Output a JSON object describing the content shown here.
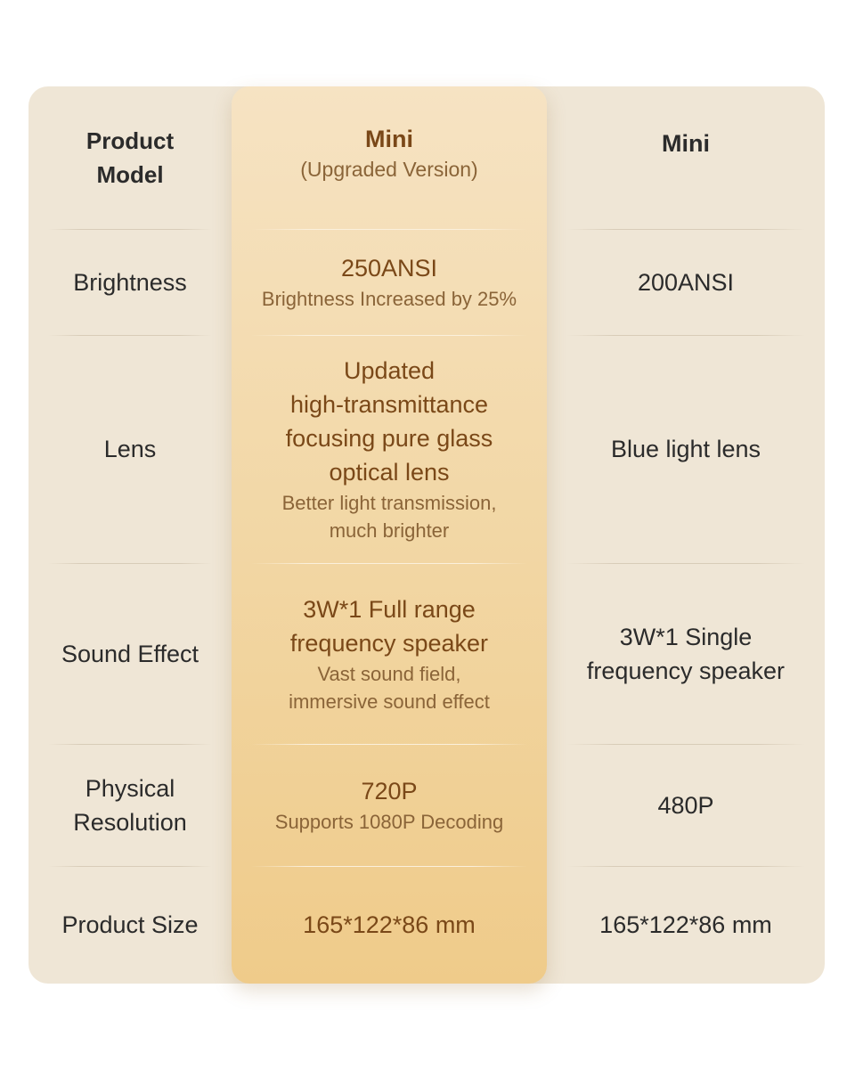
{
  "colors": {
    "card_bg": "#efe6d6",
    "highlight_top": "#f6e3c3",
    "highlight_bottom": "#efcb8a",
    "accent_text": "#7a4818"
  },
  "header": {
    "label": [
      "Product",
      "Model"
    ],
    "upgraded": {
      "title": "Mini",
      "subtitle": "(Upgraded Version)"
    },
    "standard": {
      "title": "Mini"
    }
  },
  "rows": [
    {
      "label": [
        "Brightness"
      ],
      "upgraded": {
        "main": [
          "250ANSI"
        ],
        "note": [
          "Brightness Increased by 25%"
        ]
      },
      "standard": [
        "200ANSI"
      ]
    },
    {
      "label": [
        "Lens"
      ],
      "upgraded": {
        "main": [
          "Updated",
          "high-transmittance",
          "focusing pure glass",
          "optical lens"
        ],
        "note": [
          "Better light transmission,",
          "much brighter"
        ]
      },
      "standard": [
        "Blue light lens"
      ]
    },
    {
      "label": [
        "Sound Effect"
      ],
      "upgraded": {
        "main": [
          "3W*1 Full range",
          "frequency speaker"
        ],
        "note": [
          "Vast sound field,",
          "immersive sound effect"
        ]
      },
      "standard": [
        "3W*1 Single",
        "frequency speaker"
      ]
    },
    {
      "label": [
        "Physical",
        "Resolution"
      ],
      "upgraded": {
        "main": [
          "720P"
        ],
        "note": [
          "Supports 1080P Decoding"
        ]
      },
      "standard": [
        "480P"
      ]
    },
    {
      "label": [
        "Product Size"
      ],
      "upgraded": {
        "main": [
          "165*122*86 mm"
        ],
        "note": []
      },
      "standard": [
        "165*122*86 mm"
      ]
    }
  ]
}
